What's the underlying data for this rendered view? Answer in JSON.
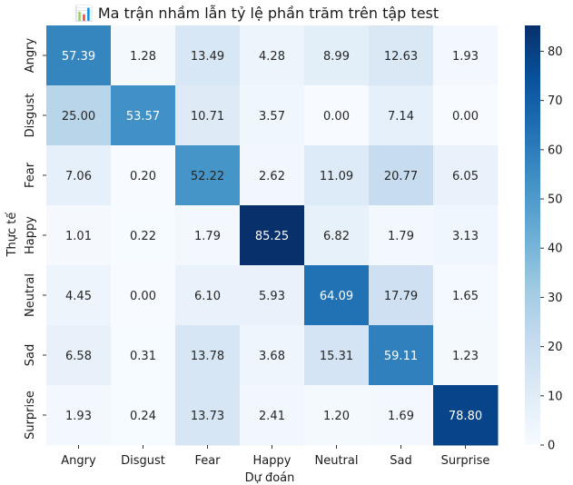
{
  "chart_data": {
    "type": "heatmap",
    "title": "📊 Ma trận nhầm lẫn tỷ lệ phần trăm trên tập test",
    "xlabel": "Dự đoán",
    "ylabel": "Thực tế",
    "x_categories": [
      "Angry",
      "Disgust",
      "Fear",
      "Happy",
      "Neutral",
      "Sad",
      "Surprise"
    ],
    "y_categories": [
      "Angry",
      "Disgust",
      "Fear",
      "Happy",
      "Neutral",
      "Sad",
      "Surprise"
    ],
    "values": [
      [
        57.39,
        1.28,
        13.49,
        4.28,
        8.99,
        12.63,
        1.93
      ],
      [
        25.0,
        53.57,
        10.71,
        3.57,
        0.0,
        7.14,
        0.0
      ],
      [
        7.06,
        0.2,
        52.22,
        2.62,
        11.09,
        20.77,
        6.05
      ],
      [
        1.01,
        0.22,
        1.79,
        85.25,
        6.82,
        1.79,
        3.13
      ],
      [
        4.45,
        0.0,
        6.1,
        5.93,
        64.09,
        17.79,
        1.65
      ],
      [
        6.58,
        0.31,
        13.78,
        3.68,
        15.31,
        59.11,
        1.23
      ],
      [
        1.93,
        0.24,
        13.73,
        2.41,
        1.2,
        1.69,
        78.8
      ]
    ],
    "value_format": "0.00",
    "colormap": "Blues",
    "colorbar": {
      "min": 0,
      "max": 85.25,
      "ticks": [
        0,
        10,
        20,
        30,
        40,
        50,
        60,
        70,
        80
      ],
      "placement": "right"
    },
    "legend": "none",
    "grid": false
  }
}
